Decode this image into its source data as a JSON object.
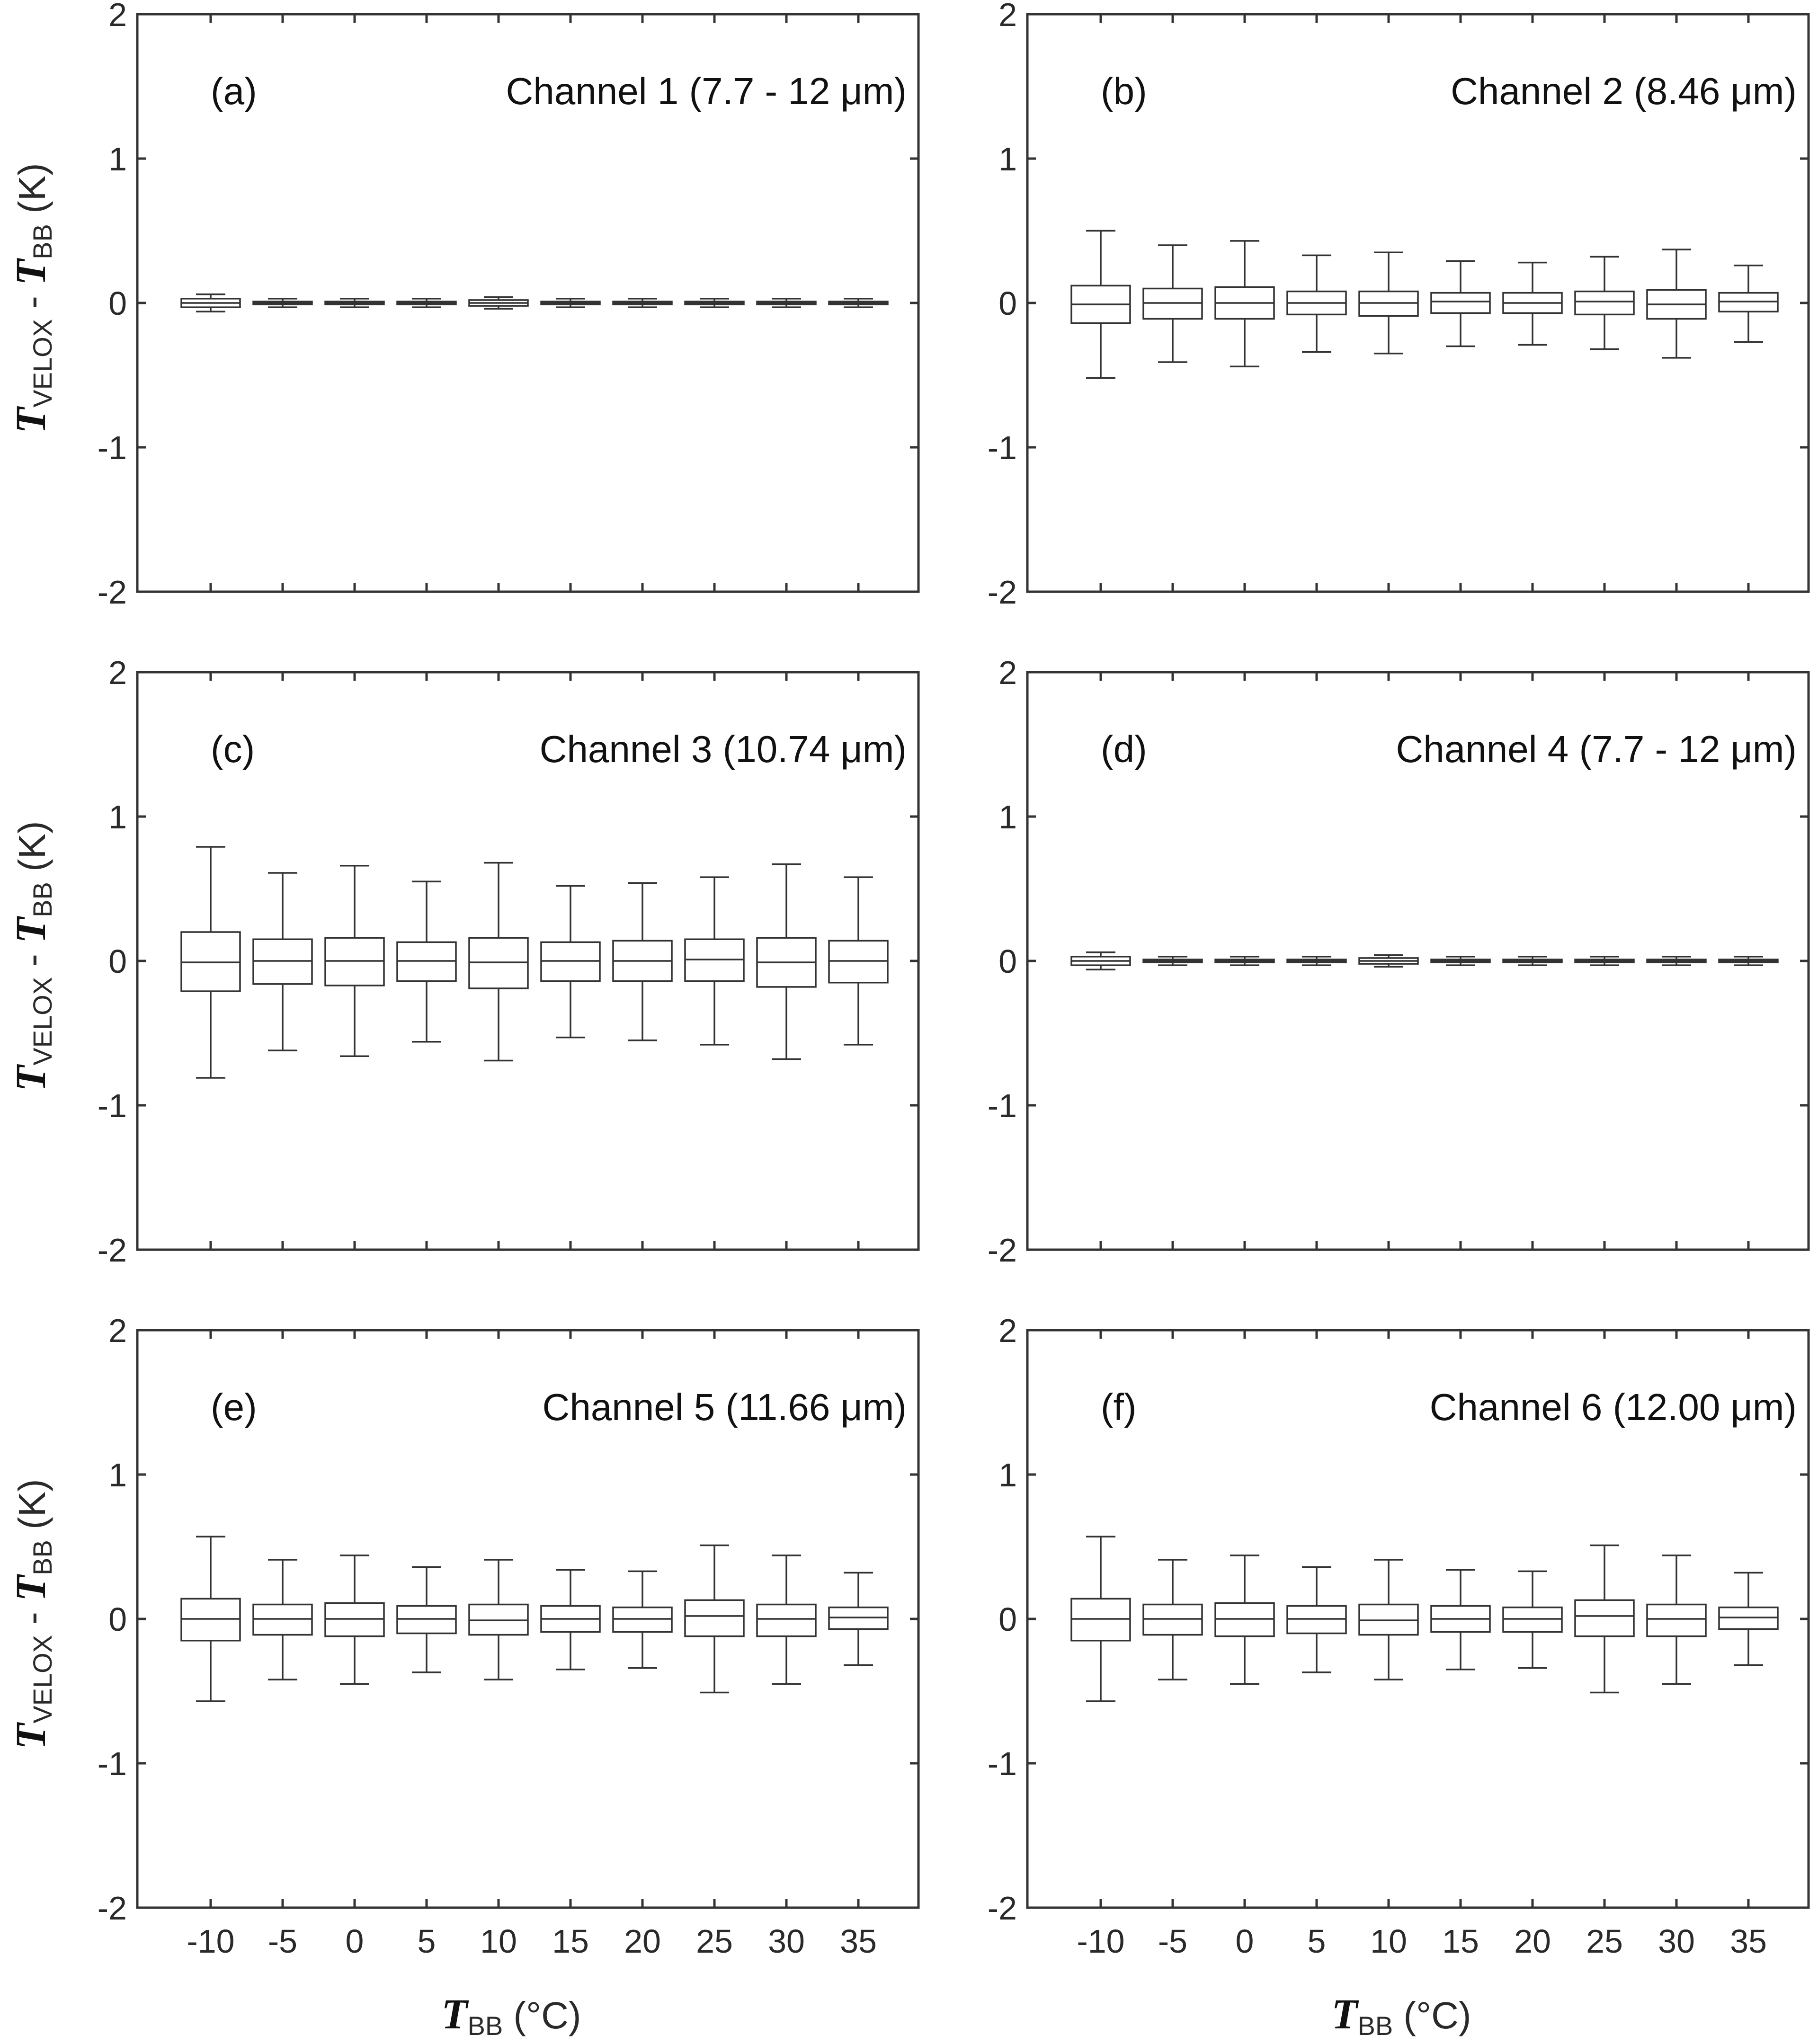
{
  "xlabel": {
    "main": "T",
    "sub": "BB",
    "unit": " (°C)"
  },
  "ylabel": {
    "t1": "T",
    "sub1": "VELOX",
    "mid": " - ",
    "t2": "T",
    "sub2": "BB",
    "unit": " (K)"
  },
  "chart_data": [
    {
      "type": "box",
      "panel_label": "(a)",
      "title": "Channel 1 (7.7 - 12 μm)",
      "categories": [
        "-10",
        "-5",
        "0",
        "5",
        "10",
        "15",
        "20",
        "25",
        "30",
        "35"
      ],
      "ylim": [
        -2,
        2
      ],
      "yticks": [
        "2",
        "1",
        "0",
        "-1",
        "-2"
      ],
      "boxes": [
        {
          "whislo": -0.06,
          "q1": -0.03,
          "med": 0.0,
          "q3": 0.03,
          "whishi": 0.06
        },
        {
          "whislo": -0.03,
          "q1": -0.01,
          "med": 0.0,
          "q3": 0.01,
          "whishi": 0.03
        },
        {
          "whislo": -0.03,
          "q1": -0.01,
          "med": 0.0,
          "q3": 0.01,
          "whishi": 0.03
        },
        {
          "whislo": -0.03,
          "q1": -0.01,
          "med": 0.0,
          "q3": 0.01,
          "whishi": 0.03
        },
        {
          "whislo": -0.04,
          "q1": -0.02,
          "med": 0.0,
          "q3": 0.02,
          "whishi": 0.04
        },
        {
          "whislo": -0.03,
          "q1": -0.01,
          "med": 0.0,
          "q3": 0.01,
          "whishi": 0.03
        },
        {
          "whislo": -0.03,
          "q1": -0.01,
          "med": 0.0,
          "q3": 0.01,
          "whishi": 0.03
        },
        {
          "whislo": -0.03,
          "q1": -0.01,
          "med": 0.0,
          "q3": 0.01,
          "whishi": 0.03
        },
        {
          "whislo": -0.03,
          "q1": -0.01,
          "med": 0.0,
          "q3": 0.01,
          "whishi": 0.03
        },
        {
          "whislo": -0.03,
          "q1": -0.01,
          "med": 0.0,
          "q3": 0.01,
          "whishi": 0.03
        }
      ]
    },
    {
      "type": "box",
      "panel_label": "(b)",
      "title": "Channel 2 (8.46 μm)",
      "categories": [
        "-10",
        "-5",
        "0",
        "5",
        "10",
        "15",
        "20",
        "25",
        "30",
        "35"
      ],
      "ylim": [
        -2,
        2
      ],
      "yticks": [
        "2",
        "1",
        "0",
        "-1",
        "-2"
      ],
      "boxes": [
        {
          "whislo": -0.52,
          "q1": -0.14,
          "med": -0.01,
          "q3": 0.12,
          "whishi": 0.5
        },
        {
          "whislo": -0.41,
          "q1": -0.11,
          "med": 0.0,
          "q3": 0.1,
          "whishi": 0.4
        },
        {
          "whislo": -0.44,
          "q1": -0.11,
          "med": 0.0,
          "q3": 0.11,
          "whishi": 0.43
        },
        {
          "whislo": -0.34,
          "q1": -0.08,
          "med": 0.0,
          "q3": 0.08,
          "whishi": 0.33
        },
        {
          "whislo": -0.35,
          "q1": -0.09,
          "med": 0.0,
          "q3": 0.08,
          "whishi": 0.35
        },
        {
          "whislo": -0.3,
          "q1": -0.07,
          "med": 0.01,
          "q3": 0.07,
          "whishi": 0.29
        },
        {
          "whislo": -0.29,
          "q1": -0.07,
          "med": 0.0,
          "q3": 0.07,
          "whishi": 0.28
        },
        {
          "whislo": -0.32,
          "q1": -0.08,
          "med": 0.01,
          "q3": 0.08,
          "whishi": 0.32
        },
        {
          "whislo": -0.38,
          "q1": -0.11,
          "med": -0.01,
          "q3": 0.09,
          "whishi": 0.37
        },
        {
          "whislo": -0.27,
          "q1": -0.06,
          "med": 0.01,
          "q3": 0.07,
          "whishi": 0.26
        }
      ]
    },
    {
      "type": "box",
      "panel_label": "(c)",
      "title": "Channel 3 (10.74 μm)",
      "categories": [
        "-10",
        "-5",
        "0",
        "5",
        "10",
        "15",
        "20",
        "25",
        "30",
        "35"
      ],
      "ylim": [
        -2,
        2
      ],
      "yticks": [
        "2",
        "1",
        "0",
        "-1",
        "-2"
      ],
      "boxes": [
        {
          "whislo": -0.81,
          "q1": -0.21,
          "med": -0.01,
          "q3": 0.2,
          "whishi": 0.79
        },
        {
          "whislo": -0.62,
          "q1": -0.16,
          "med": 0.0,
          "q3": 0.15,
          "whishi": 0.61
        },
        {
          "whislo": -0.66,
          "q1": -0.17,
          "med": 0.0,
          "q3": 0.16,
          "whishi": 0.66
        },
        {
          "whislo": -0.56,
          "q1": -0.14,
          "med": 0.0,
          "q3": 0.13,
          "whishi": 0.55
        },
        {
          "whislo": -0.69,
          "q1": -0.19,
          "med": -0.01,
          "q3": 0.16,
          "whishi": 0.68
        },
        {
          "whislo": -0.53,
          "q1": -0.14,
          "med": 0.0,
          "q3": 0.13,
          "whishi": 0.52
        },
        {
          "whislo": -0.55,
          "q1": -0.14,
          "med": 0.0,
          "q3": 0.14,
          "whishi": 0.54
        },
        {
          "whislo": -0.58,
          "q1": -0.14,
          "med": 0.01,
          "q3": 0.15,
          "whishi": 0.58
        },
        {
          "whislo": -0.68,
          "q1": -0.18,
          "med": -0.01,
          "q3": 0.16,
          "whishi": 0.67
        },
        {
          "whislo": -0.58,
          "q1": -0.15,
          "med": 0.0,
          "q3": 0.14,
          "whishi": 0.58
        }
      ]
    },
    {
      "type": "box",
      "panel_label": "(d)",
      "title": "Channel 4 (7.7 - 12 μm)",
      "categories": [
        "-10",
        "-5",
        "0",
        "5",
        "10",
        "15",
        "20",
        "25",
        "30",
        "35"
      ],
      "ylim": [
        -2,
        2
      ],
      "yticks": [
        "2",
        "1",
        "0",
        "-1",
        "-2"
      ],
      "boxes": [
        {
          "whislo": -0.06,
          "q1": -0.03,
          "med": 0.0,
          "q3": 0.03,
          "whishi": 0.06
        },
        {
          "whislo": -0.03,
          "q1": -0.01,
          "med": 0.0,
          "q3": 0.01,
          "whishi": 0.03
        },
        {
          "whislo": -0.03,
          "q1": -0.01,
          "med": 0.0,
          "q3": 0.01,
          "whishi": 0.03
        },
        {
          "whislo": -0.03,
          "q1": -0.01,
          "med": 0.0,
          "q3": 0.01,
          "whishi": 0.03
        },
        {
          "whislo": -0.04,
          "q1": -0.02,
          "med": 0.0,
          "q3": 0.02,
          "whishi": 0.04
        },
        {
          "whislo": -0.03,
          "q1": -0.01,
          "med": 0.0,
          "q3": 0.01,
          "whishi": 0.03
        },
        {
          "whislo": -0.03,
          "q1": -0.01,
          "med": 0.0,
          "q3": 0.01,
          "whishi": 0.03
        },
        {
          "whislo": -0.03,
          "q1": -0.01,
          "med": 0.0,
          "q3": 0.01,
          "whishi": 0.03
        },
        {
          "whislo": -0.03,
          "q1": -0.01,
          "med": 0.0,
          "q3": 0.01,
          "whishi": 0.03
        },
        {
          "whislo": -0.03,
          "q1": -0.01,
          "med": 0.0,
          "q3": 0.01,
          "whishi": 0.03
        }
      ]
    },
    {
      "type": "box",
      "panel_label": "(e)",
      "title": "Channel 5 (11.66 μm)",
      "categories": [
        "-10",
        "-5",
        "0",
        "5",
        "10",
        "15",
        "20",
        "25",
        "30",
        "35"
      ],
      "ylim": [
        -2,
        2
      ],
      "yticks": [
        "2",
        "1",
        "0",
        "-1",
        "-2"
      ],
      "boxes": [
        {
          "whislo": -0.57,
          "q1": -0.15,
          "med": 0.0,
          "q3": 0.14,
          "whishi": 0.57
        },
        {
          "whislo": -0.42,
          "q1": -0.11,
          "med": 0.0,
          "q3": 0.1,
          "whishi": 0.41
        },
        {
          "whislo": -0.45,
          "q1": -0.12,
          "med": 0.0,
          "q3": 0.11,
          "whishi": 0.44
        },
        {
          "whislo": -0.37,
          "q1": -0.1,
          "med": 0.0,
          "q3": 0.09,
          "whishi": 0.36
        },
        {
          "whislo": -0.42,
          "q1": -0.11,
          "med": -0.01,
          "q3": 0.1,
          "whishi": 0.41
        },
        {
          "whislo": -0.35,
          "q1": -0.09,
          "med": 0.0,
          "q3": 0.09,
          "whishi": 0.34
        },
        {
          "whislo": -0.34,
          "q1": -0.09,
          "med": 0.0,
          "q3": 0.08,
          "whishi": 0.33
        },
        {
          "whislo": -0.51,
          "q1": -0.12,
          "med": 0.02,
          "q3": 0.13,
          "whishi": 0.51
        },
        {
          "whislo": -0.45,
          "q1": -0.12,
          "med": 0.0,
          "q3": 0.1,
          "whishi": 0.44
        },
        {
          "whislo": -0.32,
          "q1": -0.07,
          "med": 0.01,
          "q3": 0.08,
          "whishi": 0.32
        }
      ]
    },
    {
      "type": "box",
      "panel_label": "(f)",
      "title": "Channel 6 (12.00 μm)",
      "categories": [
        "-10",
        "-5",
        "0",
        "5",
        "10",
        "15",
        "20",
        "25",
        "30",
        "35"
      ],
      "ylim": [
        -2,
        2
      ],
      "yticks": [
        "2",
        "1",
        "0",
        "-1",
        "-2"
      ],
      "boxes": [
        {
          "whislo": -0.57,
          "q1": -0.15,
          "med": 0.0,
          "q3": 0.14,
          "whishi": 0.57
        },
        {
          "whislo": -0.42,
          "q1": -0.11,
          "med": 0.0,
          "q3": 0.1,
          "whishi": 0.41
        },
        {
          "whislo": -0.45,
          "q1": -0.12,
          "med": 0.0,
          "q3": 0.11,
          "whishi": 0.44
        },
        {
          "whislo": -0.37,
          "q1": -0.1,
          "med": 0.0,
          "q3": 0.09,
          "whishi": 0.36
        },
        {
          "whislo": -0.42,
          "q1": -0.11,
          "med": -0.01,
          "q3": 0.1,
          "whishi": 0.41
        },
        {
          "whislo": -0.35,
          "q1": -0.09,
          "med": 0.0,
          "q3": 0.09,
          "whishi": 0.34
        },
        {
          "whislo": -0.34,
          "q1": -0.09,
          "med": 0.0,
          "q3": 0.08,
          "whishi": 0.33
        },
        {
          "whislo": -0.51,
          "q1": -0.12,
          "med": 0.02,
          "q3": 0.13,
          "whishi": 0.51
        },
        {
          "whislo": -0.45,
          "q1": -0.12,
          "med": 0.0,
          "q3": 0.1,
          "whishi": 0.44
        },
        {
          "whislo": -0.32,
          "q1": -0.07,
          "med": 0.01,
          "q3": 0.08,
          "whishi": 0.32
        }
      ]
    }
  ]
}
